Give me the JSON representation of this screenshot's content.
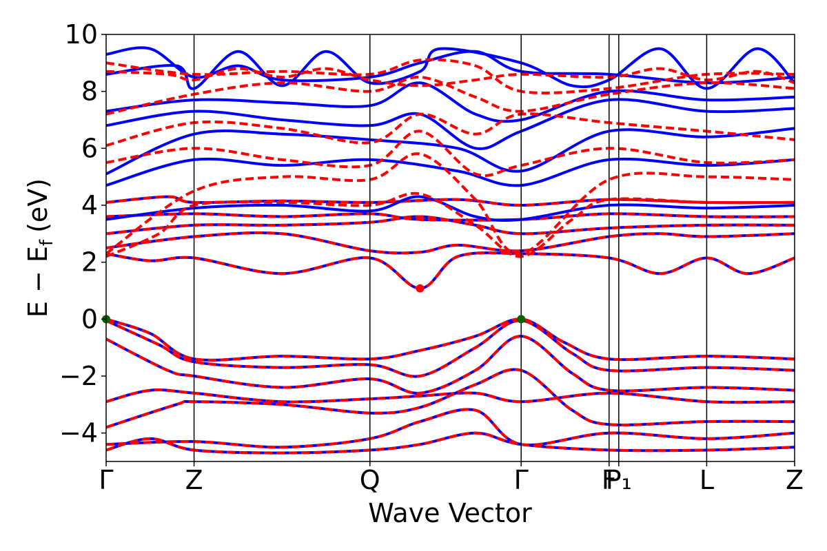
{
  "chart_data": {
    "type": "line",
    "xlabel": "Wave Vector",
    "ylabel_main": "E − E",
    "ylabel_sub": "f",
    "ylabel_unit": "(eV)",
    "ylim": [
      -5,
      10
    ],
    "yticks": [
      -4,
      -2,
      0,
      2,
      4,
      6,
      8,
      10
    ],
    "ytick_labels": [
      "−4",
      "−2",
      "0",
      "2",
      "4",
      "6",
      "8",
      "10"
    ],
    "kpath": [
      {
        "label": "Γ",
        "k": 0.0
      },
      {
        "label": "Z",
        "k": 1.0
      },
      {
        "label": "Q",
        "k": 3.0
      },
      {
        "label": "Γ",
        "k": 4.72
      },
      {
        "label": "F",
        "k": 5.72
      },
      {
        "label": "P₁",
        "k": 5.83
      },
      {
        "label": "L",
        "k": 6.83
      },
      {
        "label": "Z",
        "k": 7.83
      }
    ],
    "xlim": [
      0,
      7.83
    ],
    "colors": {
      "spin_up": "#0000ff",
      "spin_down": "#ff0000",
      "vbm": "#006400",
      "cbm": "#ff0000"
    },
    "series": [
      {
        "spin": "up",
        "style": "solid"
      },
      {
        "spin": "down",
        "style": "dashed"
      }
    ],
    "valence_band_maximum": [
      {
        "k": 0.0,
        "energy": 0.0
      },
      {
        "k": 4.72,
        "energy": 0.0
      }
    ],
    "conduction_band_minimum": [
      {
        "k": 3.57,
        "energy": 1.08
      }
    ],
    "shared_bands": [
      {
        "name": "cb1",
        "base": 1.9,
        "amp": 0.25,
        "points": [
          [
            0,
            2.3
          ],
          [
            0.5,
            2.05
          ],
          [
            1,
            2.15
          ],
          [
            2,
            1.6
          ],
          [
            3,
            2.15
          ],
          [
            3.57,
            1.08
          ],
          [
            4,
            2.2
          ],
          [
            4.72,
            2.3
          ],
          [
            5.72,
            2.15
          ],
          [
            6.3,
            1.6
          ],
          [
            6.83,
            2.15
          ],
          [
            7.3,
            1.6
          ],
          [
            7.83,
            2.15
          ]
        ]
      },
      {
        "name": "cb2",
        "points": [
          [
            0,
            2.5
          ],
          [
            1,
            2.9
          ],
          [
            2,
            3.0
          ],
          [
            3,
            2.4
          ],
          [
            3.57,
            2.35
          ],
          [
            4,
            2.6
          ],
          [
            4.72,
            2.4
          ],
          [
            5.72,
            2.9
          ],
          [
            6.3,
            3.0
          ],
          [
            6.83,
            2.9
          ],
          [
            7.83,
            3.0
          ]
        ]
      },
      {
        "name": "cb3",
        "points": [
          [
            0,
            3.0
          ],
          [
            1,
            3.3
          ],
          [
            2,
            3.3
          ],
          [
            3,
            3.4
          ],
          [
            3.57,
            3.6
          ],
          [
            4.2,
            3.3
          ],
          [
            4.72,
            3.0
          ],
          [
            5.72,
            3.2
          ],
          [
            6.83,
            3.3
          ],
          [
            7.83,
            3.3
          ]
        ]
      },
      {
        "name": "cb4",
        "points": [
          [
            0,
            3.6
          ],
          [
            1,
            3.7
          ],
          [
            2,
            3.6
          ],
          [
            3,
            3.7
          ],
          [
            3.57,
            3.5
          ],
          [
            4.72,
            3.5
          ],
          [
            5.72,
            3.7
          ],
          [
            6.83,
            3.6
          ],
          [
            7.83,
            3.6
          ]
        ]
      },
      {
        "name": "cb5",
        "points": [
          [
            0,
            4.1
          ],
          [
            0.7,
            4.3
          ],
          [
            1,
            4.1
          ],
          [
            2,
            4.15
          ],
          [
            3,
            4.1
          ],
          [
            4,
            4.2
          ],
          [
            4.72,
            4.0
          ],
          [
            5.72,
            4.2
          ],
          [
            6.83,
            4.1
          ],
          [
            7.83,
            4.1
          ]
        ]
      },
      {
        "name": "vb1",
        "points": [
          [
            0,
            0.0
          ],
          [
            0.5,
            -0.5
          ],
          [
            1,
            -1.4
          ],
          [
            2,
            -1.3
          ],
          [
            3,
            -1.4
          ],
          [
            3.57,
            -1.1
          ],
          [
            4.2,
            -0.6
          ],
          [
            4.72,
            0.0
          ],
          [
            5.2,
            -0.8
          ],
          [
            5.72,
            -1.4
          ],
          [
            6.83,
            -1.3
          ],
          [
            7.83,
            -1.4
          ]
        ]
      },
      {
        "name": "vb2",
        "points": [
          [
            0,
            -0.05
          ],
          [
            0.6,
            -0.9
          ],
          [
            1,
            -1.5
          ],
          [
            2,
            -1.7
          ],
          [
            3,
            -1.6
          ],
          [
            3.57,
            -2.0
          ],
          [
            4.2,
            -1.0
          ],
          [
            4.72,
            -0.05
          ],
          [
            5.3,
            -1.2
          ],
          [
            5.72,
            -1.8
          ],
          [
            6.83,
            -1.7
          ],
          [
            7.83,
            -1.8
          ]
        ]
      },
      {
        "name": "vb3",
        "points": [
          [
            0,
            -0.7
          ],
          [
            0.7,
            -1.8
          ],
          [
            1,
            -2.0
          ],
          [
            2,
            -2.4
          ],
          [
            3,
            -2.1
          ],
          [
            3.57,
            -2.6
          ],
          [
            4.2,
            -1.8
          ],
          [
            4.72,
            -0.6
          ],
          [
            5.3,
            -1.9
          ],
          [
            5.72,
            -2.5
          ],
          [
            6.83,
            -2.4
          ],
          [
            7.83,
            -2.5
          ]
        ]
      },
      {
        "name": "vb4",
        "points": [
          [
            0,
            -2.9
          ],
          [
            0.5,
            -2.5
          ],
          [
            1,
            -2.6
          ],
          [
            2,
            -2.9
          ],
          [
            3,
            -2.8
          ],
          [
            3.57,
            -2.7
          ],
          [
            4.2,
            -2.6
          ],
          [
            4.72,
            -2.9
          ],
          [
            5.72,
            -2.6
          ],
          [
            6.83,
            -2.9
          ],
          [
            7.83,
            -2.9
          ]
        ]
      },
      {
        "name": "vb5",
        "points": [
          [
            0,
            -3.8
          ],
          [
            0.8,
            -3.0
          ],
          [
            1,
            -2.9
          ],
          [
            2,
            -3.0
          ],
          [
            3,
            -3.3
          ],
          [
            3.57,
            -3.1
          ],
          [
            4.2,
            -2.3
          ],
          [
            4.72,
            -1.8
          ],
          [
            5.3,
            -3.2
          ],
          [
            5.72,
            -3.7
          ],
          [
            6.83,
            -3.6
          ],
          [
            7.83,
            -3.6
          ]
        ]
      },
      {
        "name": "vb6",
        "points": [
          [
            0,
            -4.4
          ],
          [
            1,
            -4.3
          ],
          [
            2,
            -4.5
          ],
          [
            3,
            -4.2
          ],
          [
            3.57,
            -3.6
          ],
          [
            4.2,
            -3.2
          ],
          [
            4.72,
            -4.4
          ],
          [
            5.72,
            -4.0
          ],
          [
            6.83,
            -4.2
          ],
          [
            7.83,
            -4.0
          ]
        ]
      },
      {
        "name": "vb7",
        "points": [
          [
            0,
            -4.6
          ],
          [
            0.5,
            -4.2
          ],
          [
            1,
            -4.6
          ],
          [
            2,
            -4.7
          ],
          [
            3,
            -4.6
          ],
          [
            3.57,
            -4.4
          ],
          [
            4.2,
            -4.0
          ],
          [
            4.72,
            -4.4
          ],
          [
            5.72,
            -4.6
          ],
          [
            6.83,
            -4.6
          ],
          [
            7.83,
            -4.5
          ]
        ]
      }
    ],
    "spin_up_bands": [
      {
        "name": "up1",
        "points": [
          [
            0,
            4.7
          ],
          [
            1,
            5.6
          ],
          [
            2,
            5.4
          ],
          [
            3,
            5.6
          ],
          [
            4,
            5.2
          ],
          [
            4.72,
            4.7
          ],
          [
            5.72,
            5.6
          ],
          [
            6.83,
            5.4
          ],
          [
            7.83,
            5.6
          ]
        ]
      },
      {
        "name": "up2",
        "points": [
          [
            0,
            5.1
          ],
          [
            1,
            6.5
          ],
          [
            2,
            6.5
          ],
          [
            3,
            6.3
          ],
          [
            4,
            6.0
          ],
          [
            4.72,
            5.2
          ],
          [
            5.72,
            6.6
          ],
          [
            6.83,
            6.4
          ],
          [
            7.83,
            6.7
          ]
        ]
      },
      {
        "name": "up3",
        "points": [
          [
            0,
            6.8
          ],
          [
            1,
            7.3
          ],
          [
            2,
            7.0
          ],
          [
            3,
            6.8
          ],
          [
            3.57,
            7.2
          ],
          [
            4.2,
            6.0
          ],
          [
            4.72,
            6.6
          ],
          [
            5.72,
            7.7
          ],
          [
            6.83,
            7.3
          ],
          [
            7.83,
            7.4
          ]
        ]
      },
      {
        "name": "up4",
        "points": [
          [
            0,
            7.3
          ],
          [
            1,
            7.7
          ],
          [
            2,
            7.6
          ],
          [
            3,
            7.5
          ],
          [
            3.57,
            8.3
          ],
          [
            4.2,
            7.2
          ],
          [
            4.72,
            7.0
          ],
          [
            5.72,
            8.0
          ],
          [
            6.83,
            7.7
          ],
          [
            7.83,
            7.8
          ]
        ]
      },
      {
        "name": "up5",
        "points": [
          [
            0,
            8.6
          ],
          [
            0.8,
            8.9
          ],
          [
            1,
            8.1
          ],
          [
            1.5,
            9.4
          ],
          [
            2,
            8.2
          ],
          [
            2.5,
            9.4
          ],
          [
            3,
            8.3
          ],
          [
            3.57,
            8.7
          ],
          [
            3.8,
            9.5
          ],
          [
            4.72,
            9.0
          ],
          [
            5.3,
            8.2
          ],
          [
            5.72,
            8.4
          ],
          [
            6.3,
            9.5
          ],
          [
            6.83,
            8.1
          ],
          [
            7.4,
            9.5
          ],
          [
            7.83,
            8.3
          ]
        ]
      },
      {
        "name": "up6",
        "points": [
          [
            0,
            9.3
          ],
          [
            0.5,
            9.5
          ],
          [
            1,
            8.5
          ],
          [
            1.5,
            8.9
          ],
          [
            2,
            8.4
          ],
          [
            3,
            8.5
          ],
          [
            3.57,
            9.0
          ],
          [
            4.2,
            9.4
          ],
          [
            4.72,
            8.7
          ],
          [
            5.72,
            8.6
          ],
          [
            6.83,
            8.3
          ],
          [
            7.83,
            8.5
          ]
        ]
      },
      {
        "name": "up7",
        "points": [
          [
            0,
            3.5
          ],
          [
            1,
            3.9
          ],
          [
            2,
            4.0
          ],
          [
            3,
            3.8
          ],
          [
            3.57,
            4.3
          ],
          [
            4.2,
            3.6
          ],
          [
            4.72,
            3.5
          ],
          [
            5.72,
            4.0
          ],
          [
            6.83,
            3.9
          ],
          [
            7.83,
            4.0
          ]
        ]
      }
    ],
    "spin_down_bands": [
      {
        "name": "dn1",
        "points": [
          [
            0,
            2.3
          ],
          [
            1,
            4.5
          ],
          [
            2,
            5.0
          ],
          [
            3,
            4.9
          ],
          [
            3.57,
            5.8
          ],
          [
            4.2,
            4.2
          ],
          [
            4.72,
            2.3
          ],
          [
            5.72,
            4.9
          ],
          [
            6.83,
            5.0
          ],
          [
            7.83,
            4.9
          ]
        ]
      },
      {
        "name": "dn2",
        "points": [
          [
            0,
            5.5
          ],
          [
            1,
            6.0
          ],
          [
            2,
            5.6
          ],
          [
            3,
            5.4
          ],
          [
            3.57,
            6.6
          ],
          [
            4.2,
            5.1
          ],
          [
            4.72,
            5.4
          ],
          [
            5.72,
            6.0
          ],
          [
            6.83,
            5.5
          ],
          [
            7.83,
            5.6
          ]
        ]
      },
      {
        "name": "dn3",
        "points": [
          [
            0,
            6.1
          ],
          [
            1,
            6.9
          ],
          [
            2,
            6.7
          ],
          [
            3,
            6.2
          ],
          [
            3.57,
            7.2
          ],
          [
            4.2,
            6.5
          ],
          [
            4.72,
            7.2
          ],
          [
            5.72,
            6.9
          ],
          [
            6.83,
            6.6
          ],
          [
            7.83,
            6.3
          ]
        ]
      },
      {
        "name": "dn4",
        "points": [
          [
            0,
            7.2
          ],
          [
            1,
            7.9
          ],
          [
            2,
            8.3
          ],
          [
            3,
            8.0
          ],
          [
            3.57,
            8.5
          ],
          [
            4.2,
            7.8
          ],
          [
            4.72,
            7.3
          ],
          [
            5.72,
            7.9
          ],
          [
            6.83,
            8.3
          ],
          [
            7.83,
            8.1
          ]
        ]
      },
      {
        "name": "dn5",
        "points": [
          [
            0,
            8.7
          ],
          [
            0.7,
            8.6
          ],
          [
            1,
            8.4
          ],
          [
            1.5,
            8.8
          ],
          [
            2,
            8.5
          ],
          [
            2.5,
            8.8
          ],
          [
            3,
            8.4
          ],
          [
            3.57,
            8.2
          ],
          [
            4.2,
            8.4
          ],
          [
            4.72,
            8.6
          ],
          [
            5.72,
            8.5
          ],
          [
            6.3,
            8.8
          ],
          [
            6.83,
            8.4
          ],
          [
            7.4,
            8.7
          ],
          [
            7.83,
            8.3
          ]
        ]
      },
      {
        "name": "dn6",
        "points": [
          [
            0,
            9.0
          ],
          [
            1,
            8.6
          ],
          [
            2,
            8.7
          ],
          [
            3,
            8.6
          ],
          [
            3.57,
            9.1
          ],
          [
            4.2,
            8.9
          ],
          [
            4.72,
            8.0
          ],
          [
            5.72,
            8.1
          ],
          [
            6.83,
            8.6
          ],
          [
            7.83,
            8.6
          ]
        ]
      },
      {
        "name": "dn7",
        "points": [
          [
            0,
            2.2
          ],
          [
            0.6,
            3.0
          ],
          [
            1,
            4.0
          ],
          [
            2,
            4.1
          ],
          [
            3,
            4.0
          ],
          [
            3.57,
            4.4
          ],
          [
            4.2,
            3.3
          ],
          [
            4.72,
            2.2
          ],
          [
            5.3,
            3.5
          ],
          [
            5.72,
            4.2
          ],
          [
            6.83,
            4.1
          ],
          [
            7.83,
            4.1
          ]
        ]
      }
    ]
  }
}
